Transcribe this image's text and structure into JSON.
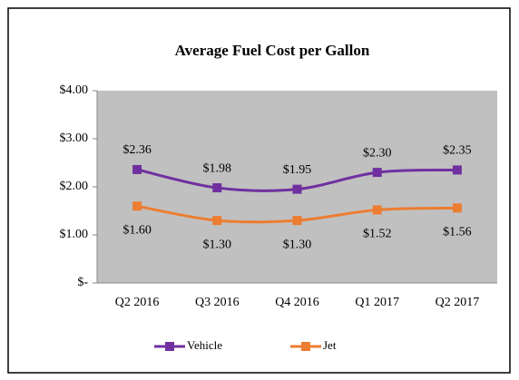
{
  "chart_data": {
    "type": "line",
    "title": "Average Fuel Cost per Gallon",
    "categories": [
      "Q2 2016",
      "Q3 2016",
      "Q4 2016",
      "Q1 2017",
      "Q2 2017"
    ],
    "series": [
      {
        "name": "Vehicle",
        "color": "#7030a0",
        "values": [
          2.36,
          1.98,
          1.95,
          2.3,
          2.35
        ],
        "value_labels": [
          "$2.36",
          "$1.98",
          "$1.95",
          "$2.30",
          "$2.35"
        ]
      },
      {
        "name": "Jet",
        "color": "#ed7d31",
        "values": [
          1.6,
          1.3,
          1.3,
          1.52,
          1.56
        ],
        "value_labels": [
          "$1.60",
          "$1.30",
          "$1.30",
          "$1.52",
          "$1.56"
        ]
      }
    ],
    "ylim": [
      0,
      4
    ],
    "yticks": [
      {
        "value": 0,
        "label": "$-"
      },
      {
        "value": 1,
        "label": "$1.00"
      },
      {
        "value": 2,
        "label": "$2.00"
      },
      {
        "value": 3,
        "label": "$3.00"
      },
      {
        "value": 4,
        "label": "$4.00"
      }
    ],
    "legend": "bottom"
  }
}
